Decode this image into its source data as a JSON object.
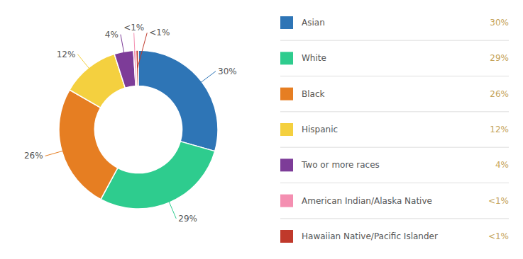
{
  "chart_data": {
    "type": "pie",
    "categories": [
      "Asian",
      "White",
      "Black",
      "Hispanic",
      "Two or more races",
      "American Indian/Alaska Native",
      "Hawaiian Native/Pacific Islander"
    ],
    "values": [
      30,
      29,
      26,
      12,
      4,
      0.5,
      0.5
    ],
    "value_labels": [
      "30%",
      "29%",
      "26%",
      "12%",
      "4%",
      "<1%",
      "<1%"
    ],
    "colors": [
      "#2E75B6",
      "#2ECC8E",
      "#E67E22",
      "#F4D03F",
      "#7D3C98",
      "#F48FB1",
      "#C0392B"
    ],
    "data_labels": true,
    "legend": "right"
  }
}
